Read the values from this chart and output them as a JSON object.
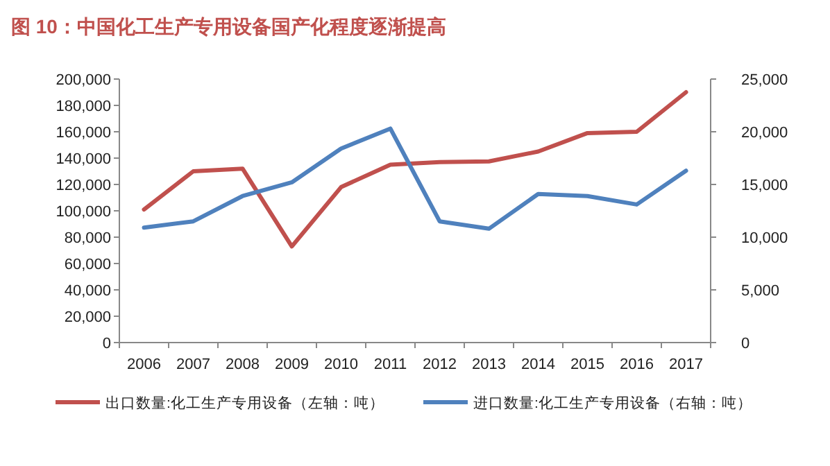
{
  "chart_data": {
    "type": "line",
    "title": "图 10：中国化工生产专用设备国产化程度逐渐提高",
    "categories": [
      "2006",
      "2007",
      "2008",
      "2009",
      "2010",
      "2011",
      "2012",
      "2013",
      "2014",
      "2015",
      "2016",
      "2017"
    ],
    "series": [
      {
        "name": "出口数量:化工生产专用设备（左轴：吨）",
        "color": "#c0504d",
        "values": [
          101000,
          130000,
          132000,
          73000,
          118000,
          135000,
          137000,
          137500,
          145000,
          159000,
          160000,
          190000
        ]
      },
      {
        "name": "进口数量:化工生产专用设备（右轴：吨）",
        "color": "#4f81bd",
        "axis": "y2",
        "values": [
          10900,
          11500,
          13900,
          15200,
          18400,
          20300,
          11500,
          10800,
          14100,
          13900,
          13100,
          16300
        ]
      }
    ],
    "ylim": [
      0,
      200000
    ],
    "yticks": [
      {
        "value": 0,
        "label": "0"
      },
      {
        "value": 20000,
        "label": "20,000"
      },
      {
        "value": 40000,
        "label": "40,000"
      },
      {
        "value": 60000,
        "label": "60,000"
      },
      {
        "value": 80000,
        "label": "80,000"
      },
      {
        "value": 100000,
        "label": "100,000"
      },
      {
        "value": 120000,
        "label": "120,000"
      },
      {
        "value": 140000,
        "label": "140,000"
      },
      {
        "value": 160000,
        "label": "160,000"
      },
      {
        "value": 180000,
        "label": "180,000"
      },
      {
        "value": 200000,
        "label": "200,000"
      }
    ],
    "y2lim": [
      0,
      25000
    ],
    "y2ticks": [
      {
        "value": 0,
        "label": "0"
      },
      {
        "value": 5000,
        "label": "5,000"
      },
      {
        "value": 10000,
        "label": "10,000"
      },
      {
        "value": 15000,
        "label": "15,000"
      },
      {
        "value": 20000,
        "label": "20,000"
      },
      {
        "value": 25000,
        "label": "25,000"
      }
    ],
    "legend": "bottom",
    "grid": false
  }
}
